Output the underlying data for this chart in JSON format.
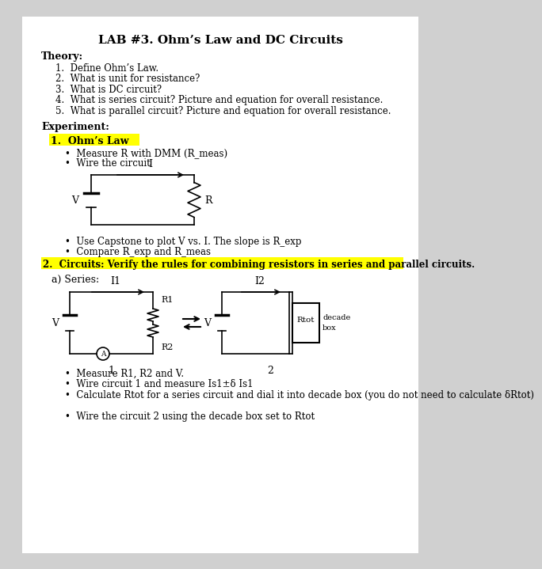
{
  "title": "LAB #3. Ohm’s Law and DC Circuits",
  "bg_color": "#ffffff",
  "page_bg": "#d0d0d0",
  "theory_header": "Theory:",
  "theory_items": [
    "Define Ohm’s Law.",
    "What is unit for resistance?",
    "What is DC circuit?",
    "What is series circuit? Picture and equation for overall resistance.",
    "What is parallel circuit? Picture and equation for overall resistance."
  ],
  "experiment_header": "Experiment:",
  "exp1_label": "1.  Ohm’s Law",
  "exp1_bullets": [
    "Measure R with DMM (R_meas)",
    "Wire the circuit"
  ],
  "exp1_bullets2": [
    "Use Capstone to plot V vs. I. The slope is R_exp",
    "Compare R_exp and R_meas"
  ],
  "exp2_label": "2.  Circuits: Verify the rules for combining resistors in series and parallel circuits.",
  "series_label": "a) Series:",
  "series_bullets": [
    "Measure R1, R2 and V.",
    "Wire circuit 1 and measure Is1±δ Is1",
    "Calculate Rtot for a series circuit and dial it into decade box (you do not need to calculate δRtot)",
    "Wire the circuit 2 using the decade box set to Rtot"
  ],
  "highlight_yellow": "#ffff00"
}
